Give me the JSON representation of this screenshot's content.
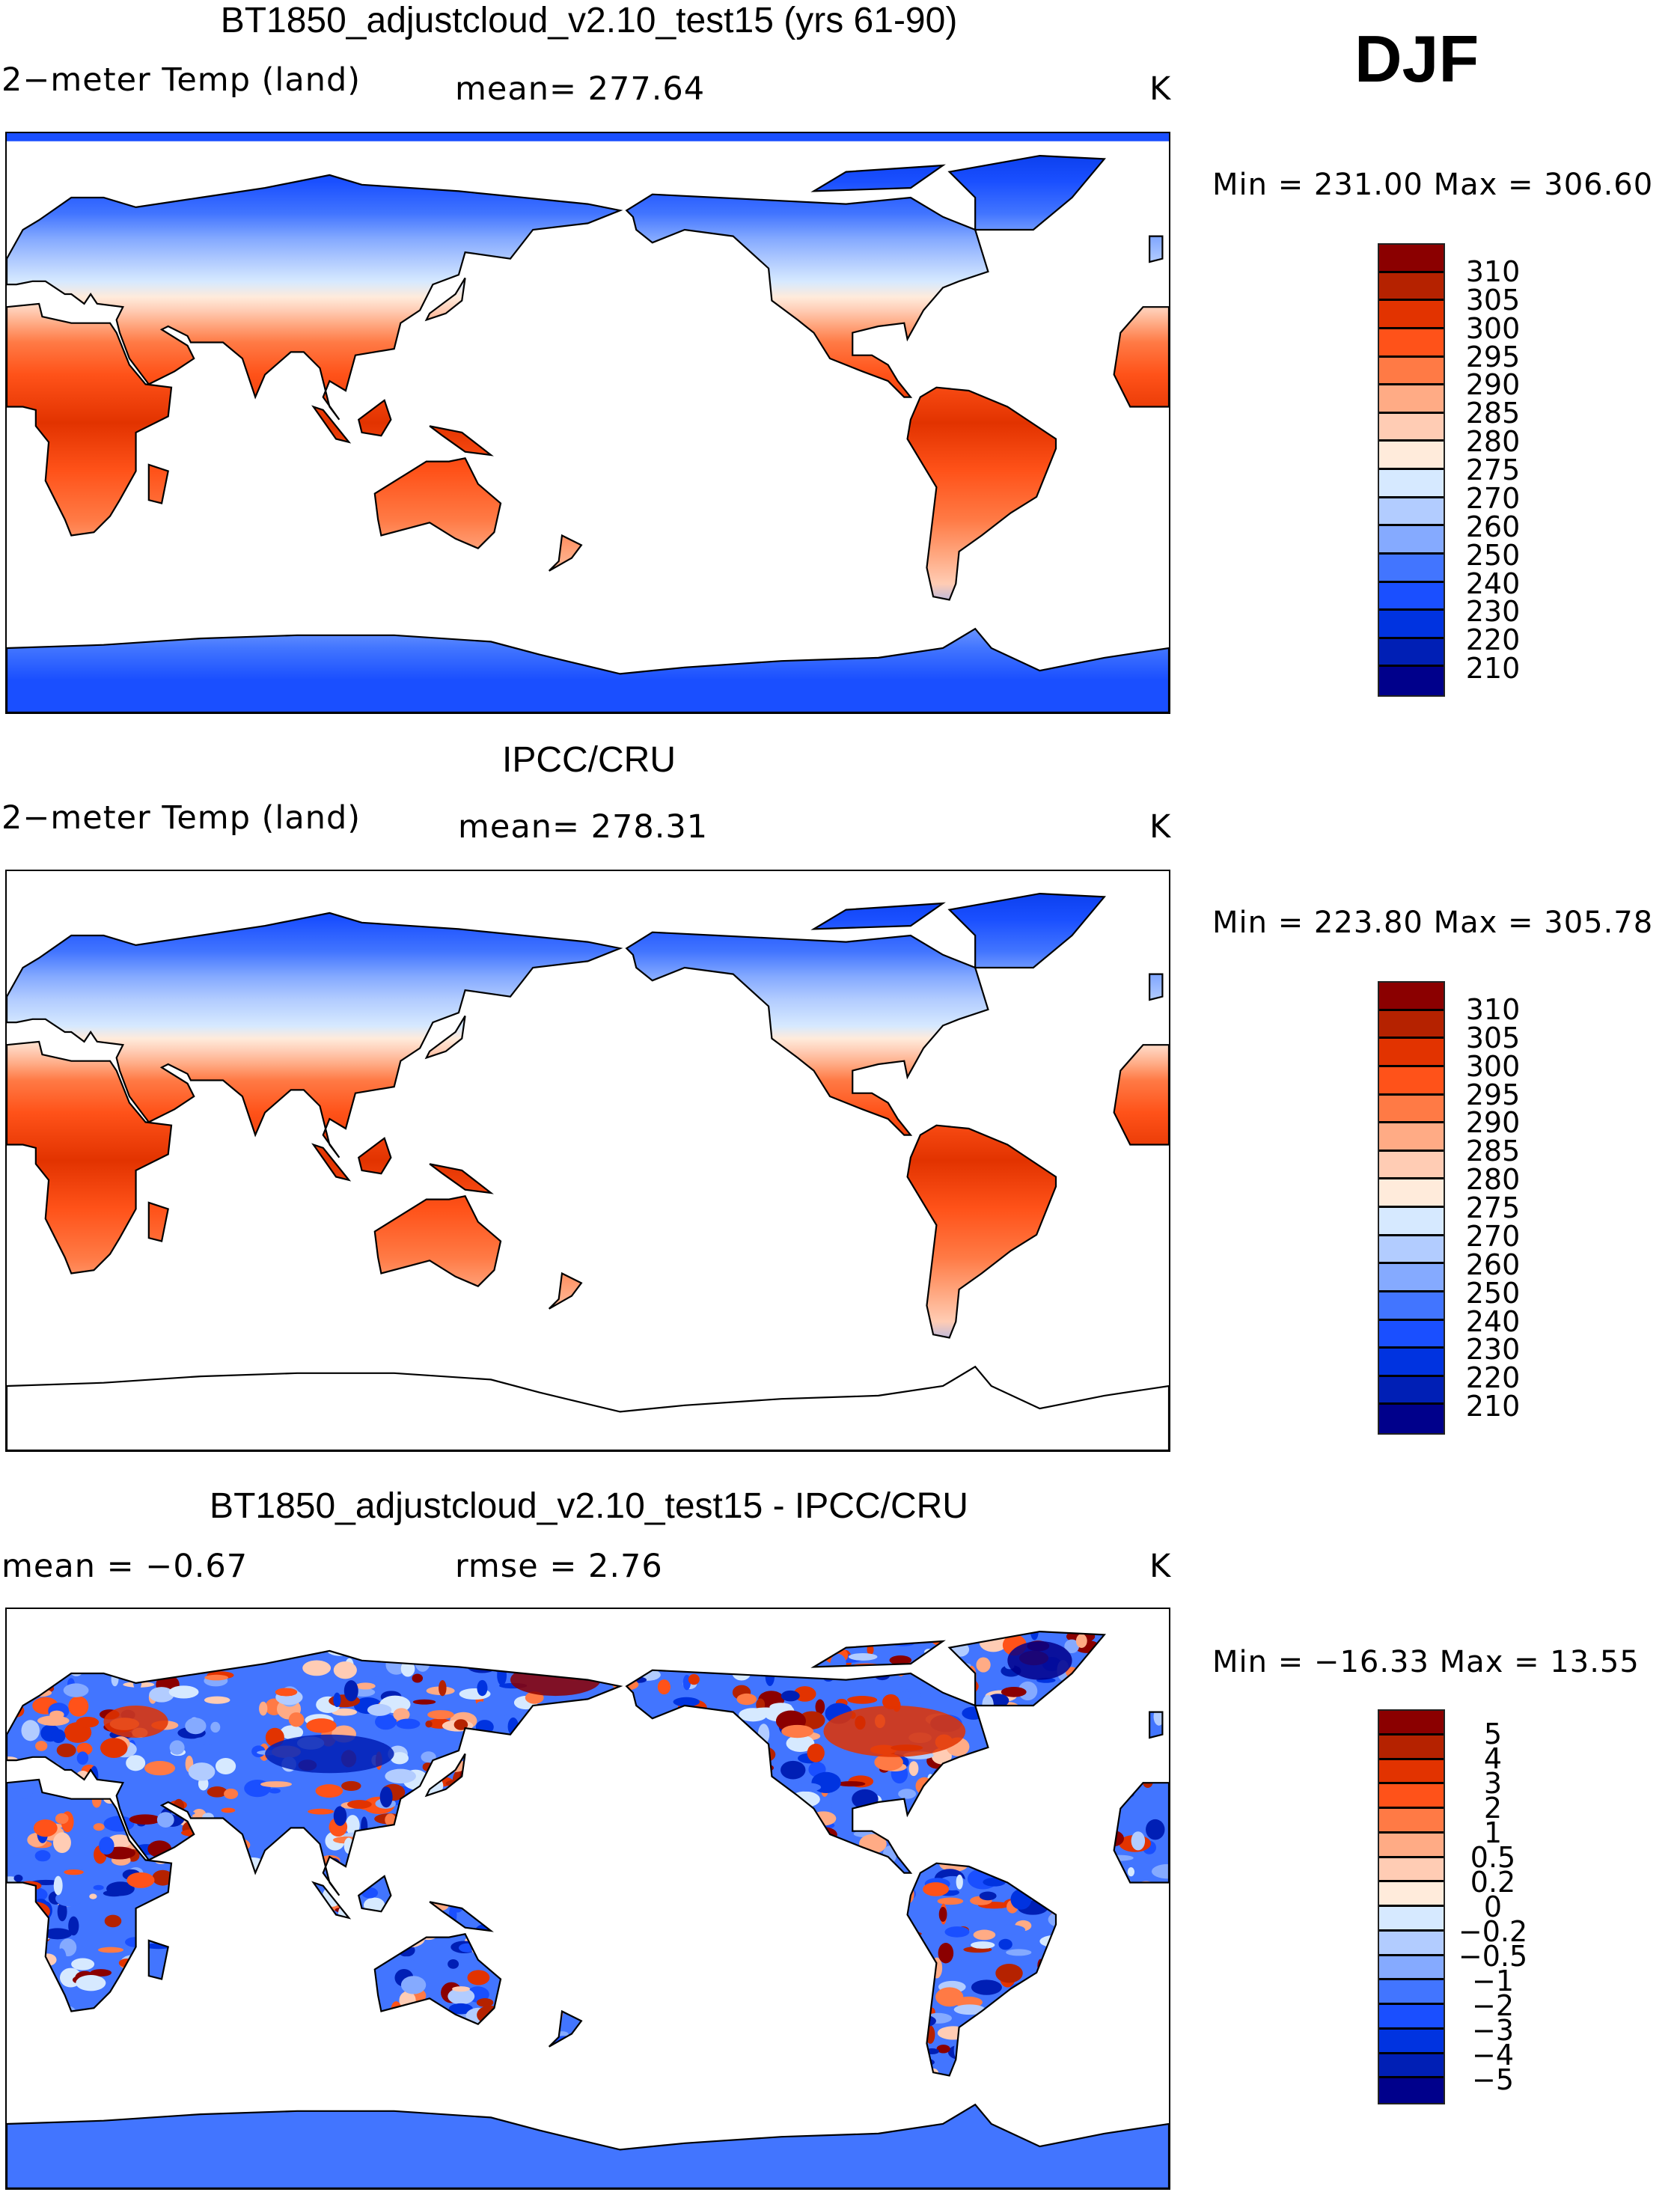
{
  "season": "DJF",
  "colors": [
    "#8b0000",
    "#b52200",
    "#e23300",
    "#ff5219",
    "#ff7a45",
    "#ffab85",
    "#ffccb4",
    "#ffebdb",
    "#d6e9ff",
    "#b2ccff",
    "#85aaff",
    "#4275ff",
    "#1a4fff",
    "#0033e0",
    "#001fb5",
    "#00008b"
  ],
  "chart_data": [
    {
      "type": "heatmap",
      "title": "BT1850_adjustcloud_v2.10_test15 (yrs 61-90)",
      "left_label": "2−meter Temp (land)",
      "center_label": "mean= 277.64",
      "units": "K",
      "minmax": "Min  =  231.00  Max  =  306.60",
      "levels": [
        "310",
        "305",
        "300",
        "295",
        "290",
        "285",
        "280",
        "275",
        "270",
        "260",
        "250",
        "240",
        "230",
        "220",
        "210"
      ],
      "field": "model"
    },
    {
      "type": "heatmap",
      "title": "IPCC/CRU",
      "left_label": "2−meter Temp (land)",
      "center_label": "mean= 278.31",
      "units": "K",
      "minmax": "Min  =  223.80  Max  =  305.78",
      "levels": [
        "310",
        "305",
        "300",
        "295",
        "290",
        "285",
        "280",
        "275",
        "270",
        "260",
        "250",
        "240",
        "230",
        "220",
        "210"
      ],
      "field": "obs"
    },
    {
      "type": "heatmap",
      "title": "BT1850_adjustcloud_v2.10_test15 - IPCC/CRU",
      "left_label": "mean =    −0.67",
      "center_label": "rmse =     2.76",
      "units": "K",
      "minmax": "Min  =  −16.33  Max  =    13.55",
      "levels": [
        "5",
        "4",
        "3",
        "2",
        "1",
        "0.5",
        "0.2",
        "0",
        "−0.2",
        "−0.5",
        "−1",
        "−2",
        "−3",
        "−4",
        "−5"
      ],
      "field": "diff"
    }
  ]
}
